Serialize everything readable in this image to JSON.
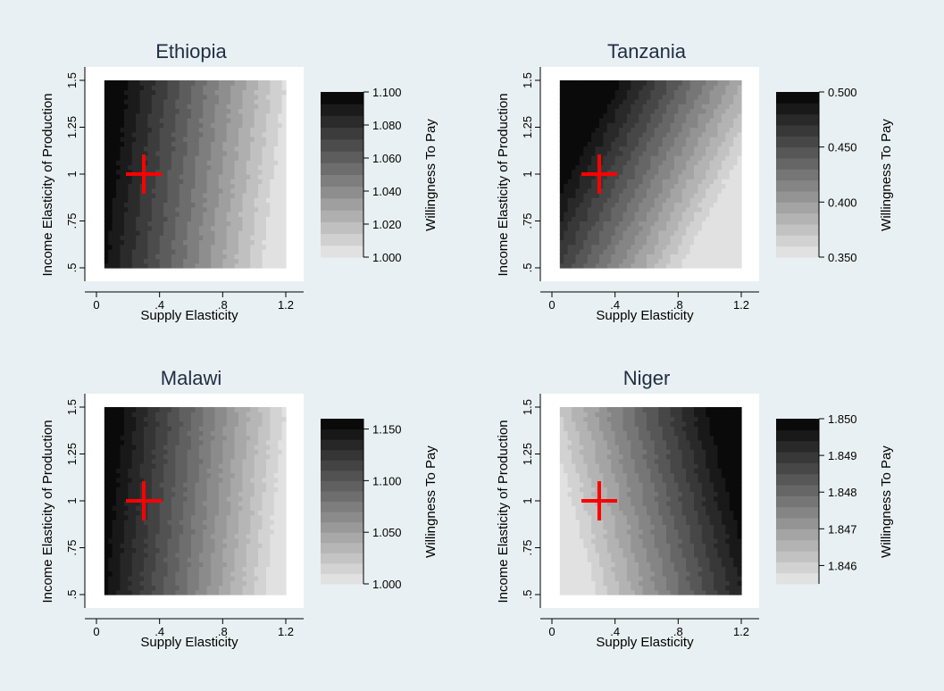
{
  "figure": {
    "background_color": "#e9f0f3",
    "plot_background": "#ffffff"
  },
  "chart_data": [
    {
      "type": "heatmap",
      "title": "Ethiopia",
      "xlabel": "Supply Elasticity",
      "ylabel": "Income Elasticity of Production",
      "colorbar_label": "Willingness To Pay",
      "xlim": [
        0,
        1.2
      ],
      "ylim": [
        0.5,
        1.5
      ],
      "xticks": [
        {
          "value": 0,
          "label": "0"
        },
        {
          "value": 0.4,
          "label": ".4"
        },
        {
          "value": 0.8,
          "label": ".8"
        },
        {
          "value": 1.2,
          "label": "1.2"
        }
      ],
      "yticks": [
        {
          "value": 0.5,
          "label": ".5"
        },
        {
          "value": 0.75,
          "label": ".75"
        },
        {
          "value": 1,
          "label": "1"
        },
        {
          "value": 1.25,
          "label": "1.25"
        },
        {
          "value": 1.5,
          "label": "1.5"
        }
      ],
      "zlim": [
        1.0,
        1.1
      ],
      "colorbar_ticks": [
        {
          "value": 1.0,
          "label": "1.000"
        },
        {
          "value": 1.02,
          "label": "1.020"
        },
        {
          "value": 1.04,
          "label": "1.040"
        },
        {
          "value": 1.06,
          "label": "1.060"
        },
        {
          "value": 1.08,
          "label": "1.080"
        },
        {
          "value": 1.1,
          "label": "1.100"
        }
      ],
      "levels": 14,
      "data_x_range": [
        0.05,
        1.2
      ],
      "data_y_range": [
        0.5,
        1.5
      ],
      "gradient": {
        "z_at_x_min": 1.1,
        "z_at_x_max": 1.0,
        "y_influence": 0.25
      },
      "marker": {
        "x": 0.3,
        "y": 1.0,
        "color": "#ff0000",
        "symbol": "plus"
      }
    },
    {
      "type": "heatmap",
      "title": "Tanzania",
      "xlabel": "Supply Elasticity",
      "ylabel": "Income Elasticity of Production",
      "colorbar_label": "Willingness To Pay",
      "xlim": [
        0,
        1.2
      ],
      "ylim": [
        0.5,
        1.5
      ],
      "xticks": [
        {
          "value": 0,
          "label": "0"
        },
        {
          "value": 0.4,
          "label": ".4"
        },
        {
          "value": 0.8,
          "label": ".8"
        },
        {
          "value": 1.2,
          "label": "1.2"
        }
      ],
      "yticks": [
        {
          "value": 0.5,
          "label": ".5"
        },
        {
          "value": 0.75,
          "label": ".75"
        },
        {
          "value": 1,
          "label": "1"
        },
        {
          "value": 1.25,
          "label": "1.25"
        },
        {
          "value": 1.5,
          "label": "1.5"
        }
      ],
      "zlim": [
        0.35,
        0.5
      ],
      "colorbar_ticks": [
        {
          "value": 0.35,
          "label": "0.350"
        },
        {
          "value": 0.4,
          "label": "0.400"
        },
        {
          "value": 0.45,
          "label": "0.450"
        },
        {
          "value": 0.5,
          "label": "0.500"
        }
      ],
      "levels": 15,
      "data_x_range": [
        0.05,
        1.2
      ],
      "data_y_range": [
        0.5,
        1.5
      ],
      "gradient": {
        "z_at_x_min": 0.5,
        "z_at_x_max": 0.35,
        "y_influence": 1.1
      },
      "marker": {
        "x": 0.3,
        "y": 1.0,
        "color": "#ff0000",
        "symbol": "plus"
      }
    },
    {
      "type": "heatmap",
      "title": "Malawi",
      "xlabel": "Supply Elasticity",
      "ylabel": "Income Elasticity of Production",
      "colorbar_label": "Willingness To Pay",
      "xlim": [
        0,
        1.2
      ],
      "ylim": [
        0.5,
        1.5
      ],
      "xticks": [
        {
          "value": 0,
          "label": "0"
        },
        {
          "value": 0.4,
          "label": ".4"
        },
        {
          "value": 0.8,
          "label": ".8"
        },
        {
          "value": 1.2,
          "label": "1.2"
        }
      ],
      "yticks": [
        {
          "value": 0.5,
          "label": ".5"
        },
        {
          "value": 0.75,
          "label": ".75"
        },
        {
          "value": 1,
          "label": "1"
        },
        {
          "value": 1.25,
          "label": "1.25"
        },
        {
          "value": 1.5,
          "label": "1.5"
        }
      ],
      "zlim": [
        1.0,
        1.16
      ],
      "colorbar_ticks": [
        {
          "value": 1.0,
          "label": "1.000"
        },
        {
          "value": 1.05,
          "label": "1.050"
        },
        {
          "value": 1.1,
          "label": "1.100"
        },
        {
          "value": 1.15,
          "label": "1.150"
        }
      ],
      "levels": 16,
      "data_x_range": [
        0.05,
        1.2
      ],
      "data_y_range": [
        0.5,
        1.5
      ],
      "gradient": {
        "z_at_x_min": 1.16,
        "z_at_x_max": 1.0,
        "y_influence": 0.2
      },
      "marker": {
        "x": 0.3,
        "y": 1.0,
        "color": "#ff0000",
        "symbol": "plus"
      }
    },
    {
      "type": "heatmap",
      "title": "Niger",
      "xlabel": "Supply Elasticity",
      "ylabel": "Income Elasticity of Production",
      "colorbar_label": "Willingness To Pay",
      "xlim": [
        0,
        1.2
      ],
      "ylim": [
        0.5,
        1.5
      ],
      "xticks": [
        {
          "value": 0,
          "label": "0"
        },
        {
          "value": 0.4,
          "label": ".4"
        },
        {
          "value": 0.8,
          "label": ".8"
        },
        {
          "value": 1.2,
          "label": "1.2"
        }
      ],
      "yticks": [
        {
          "value": 0.5,
          "label": ".5"
        },
        {
          "value": 0.75,
          "label": ".75"
        },
        {
          "value": 1,
          "label": "1"
        },
        {
          "value": 1.25,
          "label": "1.25"
        },
        {
          "value": 1.5,
          "label": "1.5"
        }
      ],
      "zlim": [
        1.8455,
        1.85
      ],
      "colorbar_ticks": [
        {
          "value": 1.846,
          "label": "1.846"
        },
        {
          "value": 1.847,
          "label": "1.847"
        },
        {
          "value": 1.848,
          "label": "1.848"
        },
        {
          "value": 1.849,
          "label": "1.849"
        },
        {
          "value": 1.85,
          "label": "1.850"
        }
      ],
      "levels": 15,
      "data_x_range": [
        0.05,
        1.2
      ],
      "data_y_range": [
        0.5,
        1.5
      ],
      "gradient": {
        "z_at_x_min": 1.8455,
        "z_at_x_max": 1.85,
        "y_influence": -0.55
      },
      "marker": {
        "x": 0.3,
        "y": 1.0,
        "color": "#ff0000",
        "symbol": "plus"
      }
    }
  ]
}
